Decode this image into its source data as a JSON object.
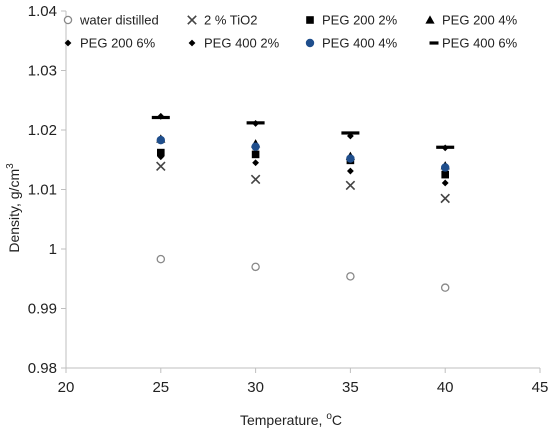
{
  "chart_data": {
    "type": "scatter",
    "xlabel": "Temperature, ",
    "xlabel_unit": "C",
    "xlabel_sup": "o",
    "ylabel": "Density, g/cm",
    "ylabel_sup": "3",
    "xlim": [
      20,
      45
    ],
    "ylim": [
      0.98,
      1.04
    ],
    "x_ticks": [
      20,
      25,
      30,
      35,
      40,
      45
    ],
    "y_ticks": [
      0.98,
      0.99,
      1.0,
      1.01,
      1.02,
      1.03,
      1.04
    ],
    "x_tick_labels": [
      "20",
      "25",
      "30",
      "35",
      "40",
      "45"
    ],
    "y_tick_labels": [
      "0.98",
      "0.99",
      "1",
      "1.01",
      "1.02",
      "1.03",
      "1.04"
    ],
    "grid": false,
    "legend_position": "top",
    "x": [
      25,
      30,
      35,
      40
    ],
    "series": [
      {
        "name": "water distilled",
        "marker": "circle-open",
        "color": "#888888",
        "values": [
          0.9983,
          0.997,
          0.9954,
          0.9935
        ]
      },
      {
        "name": "2 % TiO2",
        "marker": "x",
        "color": "#444444",
        "values": [
          1.0139,
          1.0117,
          1.0107,
          1.0085
        ]
      },
      {
        "name": "PEG 200 2%",
        "marker": "square",
        "color": "#000000",
        "values": [
          1.0162,
          1.0159,
          1.0149,
          1.0125
        ]
      },
      {
        "name": "PEG 200 4%",
        "marker": "triangle",
        "color": "#000000",
        "values": [
          1.0185,
          1.0177,
          1.0156,
          1.014
        ]
      },
      {
        "name": "PEG 200 6%",
        "marker": "diamond",
        "color": "#000000",
        "values": [
          1.0223,
          1.0211,
          1.019,
          1.017
        ]
      },
      {
        "name": "PEG 400 2%",
        "marker": "diamond",
        "color": "#000000",
        "values": [
          1.0155,
          1.0145,
          1.0131,
          1.0111
        ]
      },
      {
        "name": "PEG 400 4%",
        "marker": "circle-filled",
        "color": "#1f4e8c",
        "values": [
          1.0183,
          1.0172,
          1.0152,
          1.0137
        ]
      },
      {
        "name": "PEG 400 6%",
        "marker": "dash",
        "color": "#000000",
        "values": [
          1.0221,
          1.0212,
          1.0195,
          1.0171
        ]
      }
    ]
  }
}
